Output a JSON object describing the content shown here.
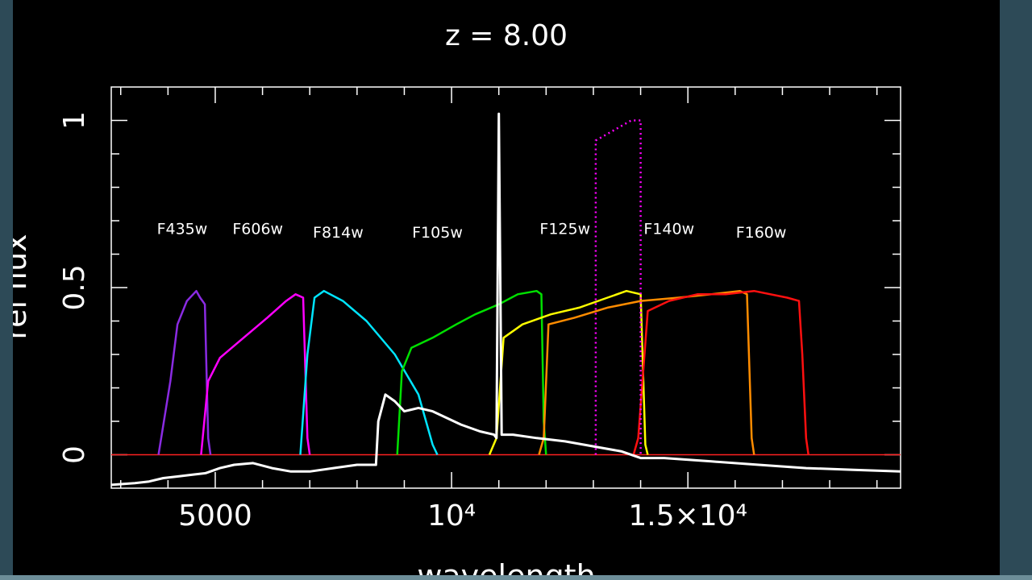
{
  "chart_data": {
    "type": "line",
    "title": "z =   8.00",
    "xlabel": "wavelength",
    "ylabel": "rel flux",
    "xlim": [
      2800,
      19500
    ],
    "ylim": [
      -0.1,
      1.1
    ],
    "x_ticks": [
      {
        "value": 5000,
        "label": "5000"
      },
      {
        "value": 10000,
        "label": "10⁴"
      },
      {
        "value": 15000,
        "label": "1.5×10⁴"
      }
    ],
    "y_ticks": [
      {
        "value": 0,
        "label": "0"
      },
      {
        "value": 0.5,
        "label": "0.5"
      },
      {
        "value": 1,
        "label": "1"
      }
    ],
    "grid": false,
    "filters": [
      {
        "name": "F435w",
        "color": "#8a2be2",
        "label_x": 4300,
        "label_y": 0.66,
        "points": [
          [
            3800,
            0
          ],
          [
            4050,
            0.22
          ],
          [
            4200,
            0.39
          ],
          [
            4400,
            0.46
          ],
          [
            4600,
            0.49
          ],
          [
            4680,
            0.47
          ],
          [
            4780,
            0.45
          ],
          [
            4850,
            0.05
          ],
          [
            4900,
            0
          ]
        ]
      },
      {
        "name": "F606w",
        "color": "#ff00ff",
        "label_x": 5900,
        "label_y": 0.66,
        "points": [
          [
            4700,
            0
          ],
          [
            4850,
            0.22
          ],
          [
            5100,
            0.29
          ],
          [
            5600,
            0.35
          ],
          [
            6100,
            0.41
          ],
          [
            6500,
            0.46
          ],
          [
            6700,
            0.48
          ],
          [
            6860,
            0.47
          ],
          [
            6950,
            0.05
          ],
          [
            7000,
            0
          ]
        ]
      },
      {
        "name": "F814w",
        "color": "#00e5ff",
        "label_x": 7600,
        "label_y": 0.65,
        "points": [
          [
            6800,
            0
          ],
          [
            6950,
            0.3
          ],
          [
            7100,
            0.47
          ],
          [
            7300,
            0.49
          ],
          [
            7700,
            0.46
          ],
          [
            8200,
            0.4
          ],
          [
            8800,
            0.3
          ],
          [
            9300,
            0.18
          ],
          [
            9600,
            0.03
          ],
          [
            9700,
            0
          ]
        ]
      },
      {
        "name": "F105w",
        "color": "#00e000",
        "label_x": 9700,
        "label_y": 0.65,
        "points": [
          [
            8850,
            0
          ],
          [
            8950,
            0.25
          ],
          [
            9150,
            0.32
          ],
          [
            9600,
            0.35
          ],
          [
            10100,
            0.39
          ],
          [
            10500,
            0.42
          ],
          [
            11000,
            0.45
          ],
          [
            11400,
            0.48
          ],
          [
            11800,
            0.49
          ],
          [
            11900,
            0.48
          ],
          [
            11950,
            0.1
          ],
          [
            12000,
            0
          ]
        ]
      },
      {
        "name": "F125w",
        "color": "#ffff00",
        "label_x": 12400,
        "label_y": 0.66,
        "points": [
          [
            10800,
            0
          ],
          [
            10950,
            0.05
          ],
          [
            11100,
            0.35
          ],
          [
            11500,
            0.39
          ],
          [
            12100,
            0.42
          ],
          [
            12700,
            0.44
          ],
          [
            13300,
            0.47
          ],
          [
            13700,
            0.49
          ],
          [
            14000,
            0.48
          ],
          [
            14100,
            0.03
          ],
          [
            14150,
            0
          ]
        ]
      },
      {
        "name": "F140w",
        "color": "#ff8c00",
        "label_x": 14600,
        "label_y": 0.66,
        "points": [
          [
            11850,
            0
          ],
          [
            11950,
            0.05
          ],
          [
            12050,
            0.39
          ],
          [
            12600,
            0.41
          ],
          [
            13300,
            0.44
          ],
          [
            14000,
            0.46
          ],
          [
            14800,
            0.47
          ],
          [
            15500,
            0.48
          ],
          [
            16100,
            0.49
          ],
          [
            16250,
            0.48
          ],
          [
            16350,
            0.05
          ],
          [
            16400,
            0
          ]
        ]
      },
      {
        "name": "F160w",
        "color": "#ff1010",
        "label_x": 16550,
        "label_y": 0.65,
        "points": [
          [
            13850,
            0
          ],
          [
            13950,
            0.05
          ],
          [
            14150,
            0.43
          ],
          [
            14600,
            0.46
          ],
          [
            15200,
            0.48
          ],
          [
            15800,
            0.48
          ],
          [
            16400,
            0.49
          ],
          [
            17100,
            0.47
          ],
          [
            17350,
            0.46
          ],
          [
            17420,
            0.3
          ],
          [
            17500,
            0.05
          ],
          [
            17550,
            0
          ]
        ]
      }
    ],
    "spectrum": {
      "name": "spectrum",
      "color": "#ffffff",
      "points": [
        [
          2800,
          -0.09
        ],
        [
          3300,
          -0.085
        ],
        [
          3600,
          -0.08
        ],
        [
          3900,
          -0.07
        ],
        [
          4200,
          -0.065
        ],
        [
          4500,
          -0.06
        ],
        [
          4800,
          -0.055
        ],
        [
          5100,
          -0.04
        ],
        [
          5400,
          -0.03
        ],
        [
          5800,
          -0.025
        ],
        [
          6200,
          -0.04
        ],
        [
          6600,
          -0.05
        ],
        [
          7000,
          -0.05
        ],
        [
          7500,
          -0.04
        ],
        [
          8000,
          -0.03
        ],
        [
          8400,
          -0.03
        ],
        [
          8450,
          0.1
        ],
        [
          8600,
          0.18
        ],
        [
          8800,
          0.16
        ],
        [
          9000,
          0.13
        ],
        [
          9300,
          0.14
        ],
        [
          9600,
          0.13
        ],
        [
          9900,
          0.11
        ],
        [
          10200,
          0.09
        ],
        [
          10600,
          0.07
        ],
        [
          10900,
          0.06
        ],
        [
          10950,
          0.05
        ],
        [
          11000,
          1.02
        ],
        [
          11060,
          0.06
        ],
        [
          11300,
          0.06
        ],
        [
          11800,
          0.05
        ],
        [
          12400,
          0.04
        ],
        [
          13000,
          0.025
        ],
        [
          13600,
          0.01
        ],
        [
          14000,
          -0.01
        ],
        [
          14500,
          -0.01
        ],
        [
          15500,
          -0.02
        ],
        [
          16500,
          -0.03
        ],
        [
          17500,
          -0.04
        ],
        [
          18500,
          -0.045
        ],
        [
          19500,
          -0.05
        ]
      ]
    },
    "dotted_band": {
      "name": "dotted-band",
      "color": "#ff00ff",
      "points": [
        [
          13050,
          0
        ],
        [
          13050,
          0.94
        ],
        [
          13800,
          1.0
        ],
        [
          14000,
          1.0
        ],
        [
          14000,
          0
        ]
      ]
    },
    "zero_line_color": "#ff2020"
  }
}
